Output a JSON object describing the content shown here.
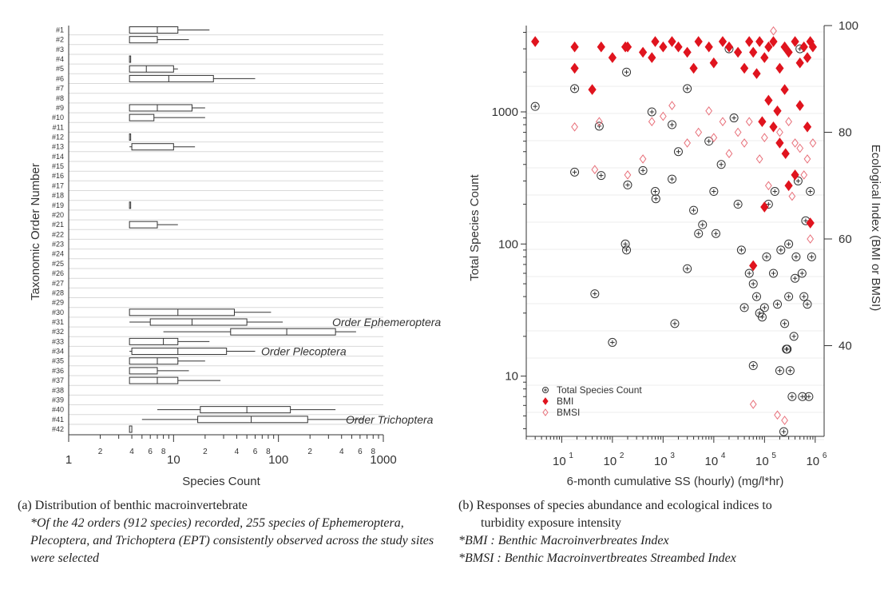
{
  "colors": {
    "axis": "#333333",
    "grid": "#d9d9d9",
    "box": "#333333",
    "circle": "#333333",
    "bmi": "#e0141e",
    "bmsi": "#e8707a"
  },
  "chart_data": [
    {
      "type": "boxplot",
      "panel": "a",
      "xlabel": "Species Count",
      "ylabel": "Taxonomic Order Number",
      "xscale": "log",
      "xlim": [
        1,
        1000
      ],
      "xticks_major": [
        "1",
        "10",
        "100",
        "1000"
      ],
      "xticks_minor": [
        "2",
        "4",
        "6",
        "8",
        "2",
        "4",
        "6",
        "8",
        "2",
        "4",
        "6",
        "8"
      ],
      "categories": [
        "#1",
        "#2",
        "#3",
        "#4",
        "#5",
        "#6",
        "#7",
        "#8",
        "#9",
        "#10",
        "#11",
        "#12",
        "#13",
        "#14",
        "#15",
        "#16",
        "#17",
        "#18",
        "#19",
        "#20",
        "#21",
        "#22",
        "#23",
        "#24",
        "#25",
        "#26",
        "#27",
        "#28",
        "#29",
        "#30",
        "#31",
        "#32",
        "#33",
        "#34",
        "#35",
        "#36",
        "#37",
        "#38",
        "#39",
        "#40",
        "#41",
        "#42"
      ],
      "boxes": [
        {
          "order": "#1",
          "min": 3.8,
          "q1": 3.8,
          "median": 7,
          "q3": 11,
          "max": 22
        },
        {
          "order": "#2",
          "min": 3.8,
          "q1": 3.8,
          "median": 3.8,
          "q3": 7,
          "max": 14
        },
        {
          "order": "#4",
          "min": 3.8,
          "q1": 3.8,
          "median": 3.8,
          "q3": 3.8,
          "max": 3.8
        },
        {
          "order": "#5",
          "min": 3.8,
          "q1": 3.8,
          "median": 5.5,
          "q3": 10,
          "max": 11
        },
        {
          "order": "#6",
          "min": 3.8,
          "q1": 3.8,
          "median": 9,
          "q3": 24,
          "max": 60
        },
        {
          "order": "#9",
          "min": 3.8,
          "q1": 3.8,
          "median": 7,
          "q3": 15,
          "max": 20
        },
        {
          "order": "#10",
          "min": 3.8,
          "q1": 3.8,
          "median": 3.8,
          "q3": 6.5,
          "max": 20
        },
        {
          "order": "#12",
          "min": 3.8,
          "q1": 3.8,
          "median": 3.8,
          "q3": 3.9,
          "max": 3.9
        },
        {
          "order": "#13",
          "min": 3.8,
          "q1": 4,
          "median": 4,
          "q3": 10,
          "max": 16
        },
        {
          "order": "#19",
          "min": 3.8,
          "q1": 3.8,
          "median": 3.8,
          "q3": 3.8,
          "max": 3.8
        },
        {
          "order": "#21",
          "min": 3.8,
          "q1": 3.8,
          "median": 3.8,
          "q3": 7,
          "max": 11
        },
        {
          "order": "#30",
          "min": 3.8,
          "q1": 3.8,
          "median": 11,
          "q3": 38,
          "max": 85
        },
        {
          "order": "#31",
          "min": 3.8,
          "q1": 6,
          "median": 15,
          "q3": 50,
          "max": 110
        },
        {
          "order": "#32",
          "min": 8,
          "q1": 35,
          "median": 120,
          "q3": 350,
          "max": 550
        },
        {
          "order": "#33",
          "min": 3.8,
          "q1": 3.8,
          "median": 8,
          "q3": 11,
          "max": 22
        },
        {
          "order": "#34",
          "min": 3.8,
          "q1": 4,
          "median": 11,
          "q3": 32,
          "max": 60
        },
        {
          "order": "#35",
          "min": 3.8,
          "q1": 3.8,
          "median": 7,
          "q3": 11,
          "max": 20
        },
        {
          "order": "#36",
          "min": 3.8,
          "q1": 3.8,
          "median": 3.8,
          "q3": 7,
          "max": 14
        },
        {
          "order": "#37",
          "min": 3.8,
          "q1": 3.8,
          "median": 7,
          "q3": 11,
          "max": 28
        },
        {
          "order": "#40",
          "min": 7,
          "q1": 18,
          "median": 50,
          "q3": 130,
          "max": 350
        },
        {
          "order": "#41",
          "min": 5,
          "q1": 17,
          "median": 55,
          "q3": 190,
          "max": 650
        },
        {
          "order": "#42",
          "min": 3.8,
          "q1": 3.8,
          "median": 3.8,
          "q3": 4,
          "max": 4
        }
      ],
      "annotations": [
        {
          "text": "Order Trichoptera",
          "order": "#41"
        },
        {
          "text": "Order Plecoptera",
          "order": "#34"
        },
        {
          "text": "Order Ephemeroptera",
          "order": "#31"
        }
      ]
    },
    {
      "type": "scatter",
      "panel": "b",
      "xlabel": "6-month cumulative SS (hourly) (mg/l*hr)",
      "ylabel_left": "Total Species Count",
      "ylabel_right": "Ecological Index (BMI or BMSI)",
      "xscale": "log",
      "xlim": [
        2,
        1500000
      ],
      "ylim_left": [
        3.5,
        4500
      ],
      "ylim_right": [
        23,
        100
      ],
      "xticks": [
        {
          "value": 10,
          "base": "10",
          "exp": "1"
        },
        {
          "value": 100,
          "base": "10",
          "exp": "2"
        },
        {
          "value": 1000,
          "base": "10",
          "exp": "3"
        },
        {
          "value": 10000,
          "base": "10",
          "exp": "4"
        },
        {
          "value": 100000,
          "base": "10",
          "exp": "5"
        },
        {
          "value": 1000000,
          "base": "10",
          "exp": "6"
        }
      ],
      "yticks_left": [
        {
          "value": 10,
          "label": "10"
        },
        {
          "value": 100,
          "label": "100"
        },
        {
          "value": 1000,
          "label": "1000"
        }
      ],
      "yticks_right": [
        {
          "value": 40,
          "label": "40"
        },
        {
          "value": 60,
          "label": "60"
        },
        {
          "value": 80,
          "label": "80"
        },
        {
          "value": 100,
          "label": "100"
        }
      ],
      "legend": {
        "position": "bottom-left",
        "entries": [
          "Total Species Count",
          "BMI",
          "BMSI"
        ]
      },
      "series": [
        {
          "name": "Total Species Count",
          "marker": "circle-plus",
          "axis": "left",
          "note": "approximate subset of points",
          "points": [
            [
              3,
              1100
            ],
            [
              18,
              1500
            ],
            [
              18,
              350
            ],
            [
              55,
              780
            ],
            [
              60,
              330
            ],
            [
              45,
              42
            ],
            [
              100,
              18
            ],
            [
              180,
              100
            ],
            [
              190,
              90
            ],
            [
              190,
              2000
            ],
            [
              200,
              280
            ],
            [
              400,
              360
            ],
            [
              600,
              1000
            ],
            [
              700,
              250
            ],
            [
              720,
              220
            ],
            [
              1500,
              800
            ],
            [
              1500,
              310
            ],
            [
              1700,
              25
            ],
            [
              2000,
              500
            ],
            [
              3000,
              65
            ],
            [
              3000,
              1500
            ],
            [
              4000,
              180
            ],
            [
              5000,
              120
            ],
            [
              6000,
              140
            ],
            [
              8000,
              600
            ],
            [
              10000,
              250
            ],
            [
              11000,
              120
            ],
            [
              14000,
              400
            ],
            [
              20000,
              3000
            ],
            [
              25000,
              900
            ],
            [
              30000,
              200
            ],
            [
              35000,
              90
            ],
            [
              40000,
              33
            ],
            [
              50000,
              60
            ],
            [
              60000,
              50
            ],
            [
              60000,
              12
            ],
            [
              70000,
              40
            ],
            [
              80000,
              30
            ],
            [
              90000,
              28
            ],
            [
              100000,
              33
            ],
            [
              110000,
              80
            ],
            [
              120000,
              200
            ],
            [
              150000,
              60
            ],
            [
              160000,
              250
            ],
            [
              180000,
              35
            ],
            [
              200000,
              11
            ],
            [
              210000,
              90
            ],
            [
              240000,
              3.8
            ],
            [
              250000,
              25
            ],
            [
              270000,
              16
            ],
            [
              280000,
              16
            ],
            [
              300000,
              40
            ],
            [
              300000,
              100
            ],
            [
              320000,
              11
            ],
            [
              350000,
              7
            ],
            [
              380000,
              20
            ],
            [
              400000,
              55
            ],
            [
              420000,
              80
            ],
            [
              460000,
              300
            ],
            [
              500000,
              3000
            ],
            [
              550000,
              60
            ],
            [
              560000,
              7
            ],
            [
              600000,
              40
            ],
            [
              650000,
              150
            ],
            [
              700000,
              35
            ],
            [
              750000,
              7
            ],
            [
              800000,
              250
            ],
            [
              850000,
              80
            ]
          ]
        },
        {
          "name": "BMI",
          "marker": "diamond-filled",
          "axis": "right",
          "note": "approximate subset of points",
          "points": [
            [
              3,
              97
            ],
            [
              18,
              96
            ],
            [
              18,
              92
            ],
            [
              40,
              88
            ],
            [
              60,
              96
            ],
            [
              100,
              94
            ],
            [
              180,
              96
            ],
            [
              200,
              96
            ],
            [
              400,
              95
            ],
            [
              600,
              94
            ],
            [
              700,
              97
            ],
            [
              1000,
              96
            ],
            [
              1500,
              97
            ],
            [
              2000,
              96
            ],
            [
              3000,
              95
            ],
            [
              4000,
              92
            ],
            [
              5000,
              97
            ],
            [
              8000,
              96
            ],
            [
              10000,
              93
            ],
            [
              15000,
              97
            ],
            [
              20000,
              96
            ],
            [
              30000,
              95
            ],
            [
              40000,
              92
            ],
            [
              50000,
              97
            ],
            [
              60000,
              95
            ],
            [
              70000,
              91
            ],
            [
              80000,
              97
            ],
            [
              100000,
              94
            ],
            [
              120000,
              96
            ],
            [
              150000,
              97
            ],
            [
              200000,
              92
            ],
            [
              250000,
              96
            ],
            [
              300000,
              95
            ],
            [
              400000,
              97
            ],
            [
              500000,
              93
            ],
            [
              600000,
              96
            ],
            [
              700000,
              94
            ],
            [
              800000,
              97
            ],
            [
              900000,
              96
            ],
            [
              150000,
              81
            ],
            [
              200000,
              78
            ],
            [
              260000,
              76
            ],
            [
              300000,
              70
            ],
            [
              100000,
              66
            ],
            [
              60000,
              55
            ],
            [
              400000,
              72
            ],
            [
              800000,
              63
            ],
            [
              700000,
              81
            ],
            [
              500000,
              85
            ],
            [
              250000,
              88
            ],
            [
              180000,
              84
            ],
            [
              120000,
              86
            ],
            [
              90000,
              82
            ]
          ]
        },
        {
          "name": "BMSI",
          "marker": "diamond-open",
          "axis": "right",
          "note": "approximate subset of points",
          "points": [
            [
              18,
              81
            ],
            [
              55,
              82
            ],
            [
              45,
              73
            ],
            [
              200,
              72
            ],
            [
              400,
              75
            ],
            [
              600,
              82
            ],
            [
              1000,
              83
            ],
            [
              1500,
              85
            ],
            [
              3000,
              78
            ],
            [
              5000,
              80
            ],
            [
              8000,
              84
            ],
            [
              10000,
              79
            ],
            [
              15000,
              82
            ],
            [
              20000,
              76
            ],
            [
              30000,
              80
            ],
            [
              40000,
              78
            ],
            [
              50000,
              82
            ],
            [
              60000,
              29
            ],
            [
              80000,
              75
            ],
            [
              100000,
              79
            ],
            [
              120000,
              70
            ],
            [
              150000,
              99
            ],
            [
              180000,
              27
            ],
            [
              200000,
              80
            ],
            [
              250000,
              26
            ],
            [
              300000,
              82
            ],
            [
              350000,
              68
            ],
            [
              400000,
              78
            ],
            [
              500000,
              77
            ],
            [
              600000,
              72
            ],
            [
              700000,
              75
            ],
            [
              800000,
              60
            ],
            [
              900000,
              78
            ]
          ]
        }
      ]
    }
  ],
  "captions": {
    "a_title": "(a) Distribution of benthic macroinvertebrate",
    "a_note": "*Of the 42 orders (912 species) recorded, 255 species of Ephemeroptera, Plecoptera, and Trichoptera (EPT) consistently observed across the study sites were selected",
    "b_title_1": "(b) Responses of species abundance and ecological indices to",
    "b_title_2": "turbidity exposure intensity",
    "b_note_1": "*BMI : Benthic Macroinverbreates Index",
    "b_note_2": "*BMSI : Benthic Macroinvertbreates Streambed Index"
  }
}
